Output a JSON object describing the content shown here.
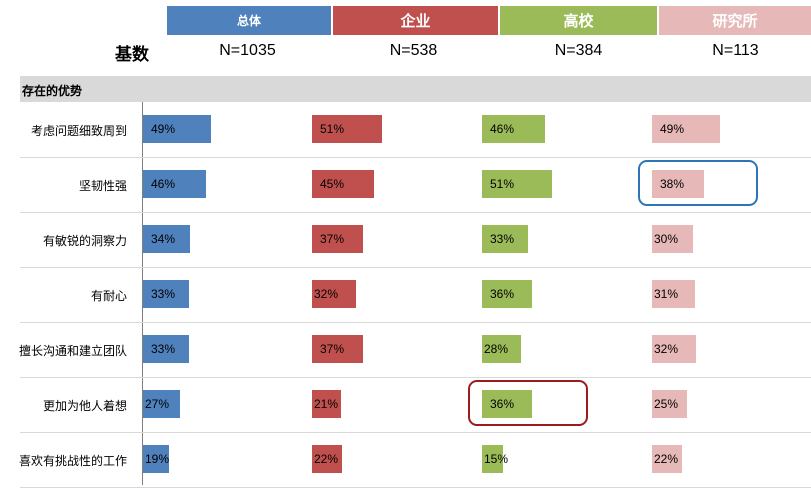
{
  "groups": [
    {
      "name": "总体",
      "n": "N=1035",
      "color": "#4f81bd"
    },
    {
      "name": "企业",
      "n": "N=538",
      "color": "#c0504d"
    },
    {
      "name": "高校",
      "n": "N=384",
      "color": "#9bbb59"
    },
    {
      "name": "研究所",
      "n": "N=113",
      "color": "#e6b9b8"
    }
  ],
  "base_label": "基数",
  "section_title": "存在的优势",
  "chart_data": {
    "type": "bar",
    "title": "",
    "categories": [
      "考虑问题细致周到",
      "坚韧性强",
      "有敏锐的洞察力",
      "有耐心",
      "擅长沟通和建立团队",
      "更加为他人着想",
      "喜欢有挑战性的工作"
    ],
    "series": [
      {
        "name": "总体",
        "values": [
          49,
          46,
          34,
          33,
          33,
          27,
          19
        ],
        "labels": [
          "49%",
          "46%",
          "34%",
          "33%",
          "33%",
          "27%",
          "19%"
        ]
      },
      {
        "name": "企业",
        "values": [
          51,
          45,
          37,
          32,
          37,
          21,
          22
        ],
        "labels": [
          "51%",
          "45%",
          "37%",
          "32%",
          "37%",
          "21%",
          "22%"
        ]
      },
      {
        "name": "高校",
        "values": [
          46,
          51,
          33,
          36,
          28,
          36,
          15
        ],
        "labels": [
          "46%",
          "51%",
          "33%",
          "36%",
          "28%",
          "36%",
          "15%"
        ]
      },
      {
        "name": "研究所",
        "values": [
          49,
          38,
          30,
          31,
          32,
          25,
          22
        ],
        "labels": [
          "49%",
          "38%",
          "30%",
          "31%",
          "32%",
          "25%",
          "22%"
        ]
      }
    ],
    "unit": "%",
    "highlights": [
      {
        "series": "研究所",
        "category": "坚韧性强",
        "color": "#2e75b6"
      },
      {
        "series": "高校",
        "category": "更加为他人着想",
        "color": "#9b1c1c"
      }
    ]
  }
}
